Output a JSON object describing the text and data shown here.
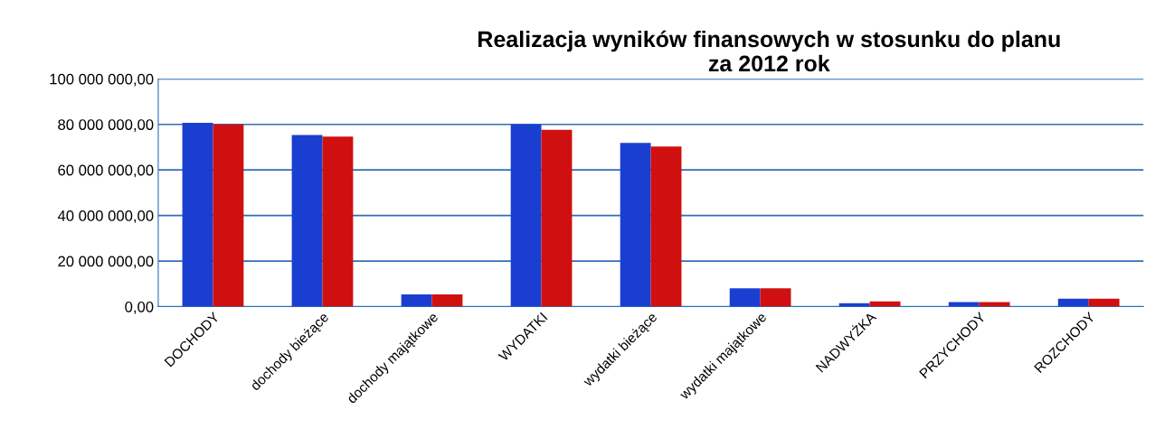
{
  "chart_data": {
    "type": "bar",
    "title": "Realizacja wyników finansowych w stosunku do planu\nza 2012 rok",
    "categories": [
      "DOCHODY",
      "dochody bieżące",
      "dochody majątkowe",
      "WYDATKI",
      "wydatki bieżące",
      "wydatki majątkowe",
      "NADWYŻKA",
      "PRZYCHODY",
      "ROZCHODY"
    ],
    "series": [
      {
        "color": "#1a3fd0",
        "values": [
          80700000,
          75300000,
          5400000,
          80000000,
          71900000,
          8000000,
          1500000,
          2000000,
          3500000
        ]
      },
      {
        "color": "#d01010",
        "values": [
          80000000,
          74600000,
          5400000,
          77600000,
          70300000,
          8000000,
          2300000,
          2000000,
          3500000
        ]
      }
    ],
    "ylim": [
      0,
      100000000
    ],
    "yticks": [
      {
        "value": 0,
        "label": "0,00"
      },
      {
        "value": 20000000,
        "label": "20 000 000,00"
      },
      {
        "value": 40000000,
        "label": "40 000 000,00"
      },
      {
        "value": 60000000,
        "label": "60 000 000,00"
      },
      {
        "value": 80000000,
        "label": "80 000 000,00"
      },
      {
        "value": 100000000,
        "label": "100 000 000,00"
      }
    ],
    "grid": "y"
  }
}
